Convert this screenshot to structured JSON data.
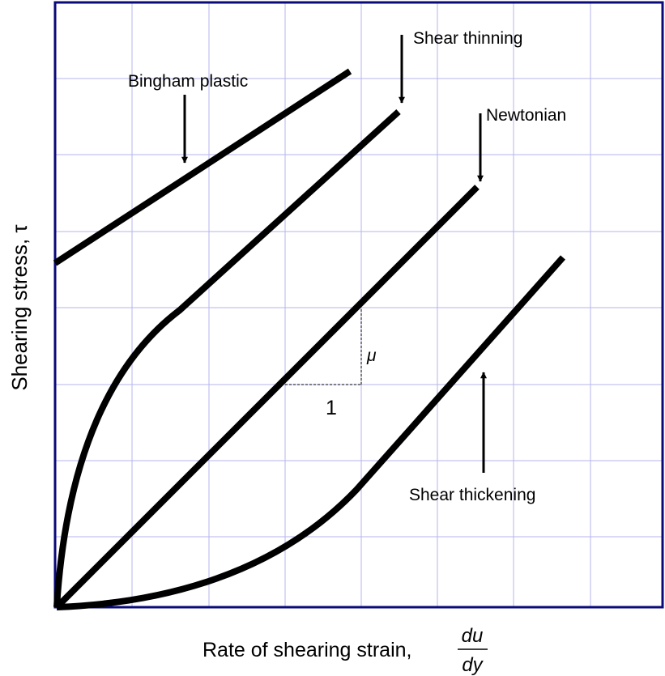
{
  "figure": {
    "ylabel": "Shearing stress, τ",
    "xlabel": "Rate of shearing strain,",
    "xlabel_fraction": {
      "numerator": "du",
      "denominator": "dy"
    },
    "curves": [
      {
        "name": "Bingham plastic"
      },
      {
        "name": "Shear thinning"
      },
      {
        "name": "Newtonian"
      },
      {
        "name": "Shear thickening"
      }
    ],
    "slope_triangle": {
      "run_label": "1",
      "rise_label": "μ"
    },
    "colors": {
      "frame": "#0a0a7a",
      "grid": "#b4b4ec",
      "curve": "#000000"
    }
  }
}
